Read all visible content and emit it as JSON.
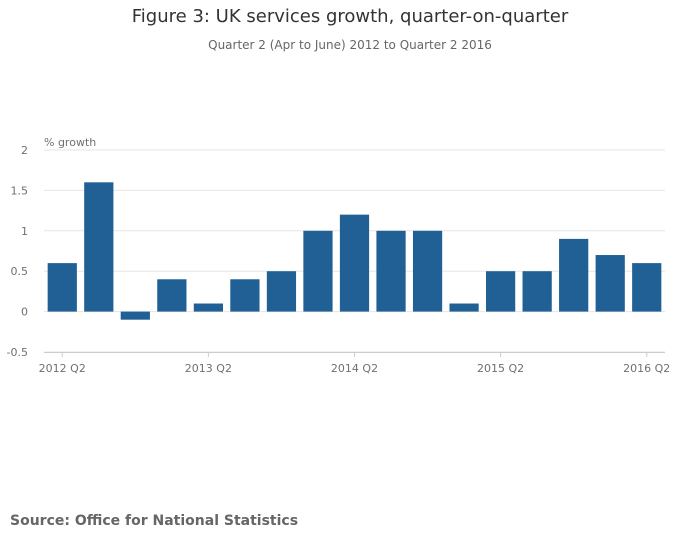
{
  "chart_data": {
    "type": "bar",
    "title": "Figure 3: UK services growth, quarter-on-quarter",
    "subtitle": "Quarter 2 (Apr to June) 2012 to Quarter 2 2016",
    "ylabel": "% growth",
    "xlabel": "",
    "ylim": [
      -0.5,
      2
    ],
    "yticks": [
      -0.5,
      0,
      0.5,
      1,
      1.5,
      2
    ],
    "ytick_labels": [
      "-0.5",
      "0",
      "0.5",
      "1",
      "1.5",
      "2"
    ],
    "categories": [
      "2012 Q2",
      "2012 Q3",
      "2012 Q4",
      "2013 Q1",
      "2013 Q2",
      "2013 Q3",
      "2013 Q4",
      "2014 Q1",
      "2014 Q2",
      "2014 Q3",
      "2014 Q4",
      "2015 Q1",
      "2015 Q2",
      "2015 Q3",
      "2015 Q4",
      "2016 Q1",
      "2016 Q2"
    ],
    "values": [
      0.6,
      1.6,
      -0.1,
      0.4,
      0.1,
      0.4,
      0.5,
      1.0,
      1.2,
      1.0,
      1.0,
      0.1,
      0.5,
      0.5,
      0.9,
      0.7,
      0.6
    ],
    "xtick_labels": [
      "2012 Q2",
      "2013 Q2",
      "2014 Q2",
      "2015 Q2",
      "2016 Q2"
    ],
    "bar_color": "#206095",
    "grid": true,
    "source": "Source: Office for National Statistics"
  }
}
